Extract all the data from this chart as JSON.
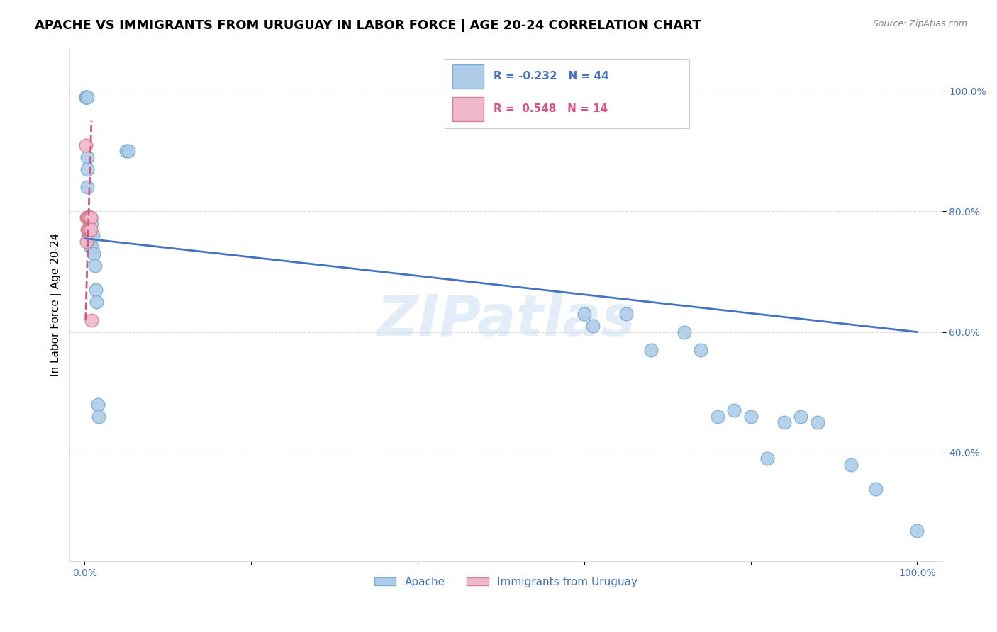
{
  "title": "APACHE VS IMMIGRANTS FROM URUGUAY IN LABOR FORCE | AGE 20-24 CORRELATION CHART",
  "source": "Source: ZipAtlas.com",
  "ylabel": "In Labor Force | Age 20-24",
  "ytick_labels": [
    "40.0%",
    "60.0%",
    "80.0%",
    "100.0%"
  ],
  "ytick_values": [
    0.4,
    0.6,
    0.8,
    1.0
  ],
  "watermark": "ZIPatlas",
  "apache_x": [
    0.001,
    0.001,
    0.002,
    0.002,
    0.002,
    0.003,
    0.003,
    0.003,
    0.003,
    0.004,
    0.004,
    0.005,
    0.005,
    0.006,
    0.006,
    0.007,
    0.007,
    0.008,
    0.009,
    0.01,
    0.011,
    0.012,
    0.013,
    0.014,
    0.016,
    0.017,
    0.05,
    0.052,
    0.6,
    0.61,
    0.65,
    0.68,
    0.72,
    0.74,
    0.76,
    0.78,
    0.8,
    0.82,
    0.84,
    0.86,
    0.88,
    0.92,
    0.95,
    1.0
  ],
  "apache_y": [
    0.99,
    0.99,
    0.99,
    0.99,
    0.99,
    0.99,
    0.89,
    0.87,
    0.84,
    0.79,
    0.76,
    0.79,
    0.76,
    0.79,
    0.76,
    0.79,
    0.74,
    0.78,
    0.74,
    0.76,
    0.73,
    0.71,
    0.67,
    0.65,
    0.48,
    0.46,
    0.9,
    0.9,
    0.63,
    0.61,
    0.63,
    0.57,
    0.6,
    0.57,
    0.46,
    0.47,
    0.46,
    0.39,
    0.45,
    0.46,
    0.45,
    0.38,
    0.34,
    0.27
  ],
  "uruguay_x": [
    0.001,
    0.002,
    0.002,
    0.003,
    0.003,
    0.004,
    0.004,
    0.005,
    0.005,
    0.006,
    0.006,
    0.007,
    0.007,
    0.008
  ],
  "uruguay_y": [
    0.91,
    0.79,
    0.75,
    0.79,
    0.77,
    0.79,
    0.77,
    0.79,
    0.77,
    0.79,
    0.77,
    0.79,
    0.77,
    0.62
  ],
  "apache_R": -0.232,
  "apache_N": 44,
  "uruguay_R": 0.548,
  "uruguay_N": 14,
  "apache_color": "#aecce8",
  "apache_edge_color": "#7aafd4",
  "uruguay_color": "#f0b8cc",
  "uruguay_edge_color": "#d48090",
  "apache_line_color": "#4472c4",
  "uruguay_line_color": "#d4547a",
  "background_color": "#ffffff",
  "grid_color": "#cccccc",
  "title_fontsize": 13,
  "axis_label_fontsize": 11,
  "tick_fontsize": 10
}
